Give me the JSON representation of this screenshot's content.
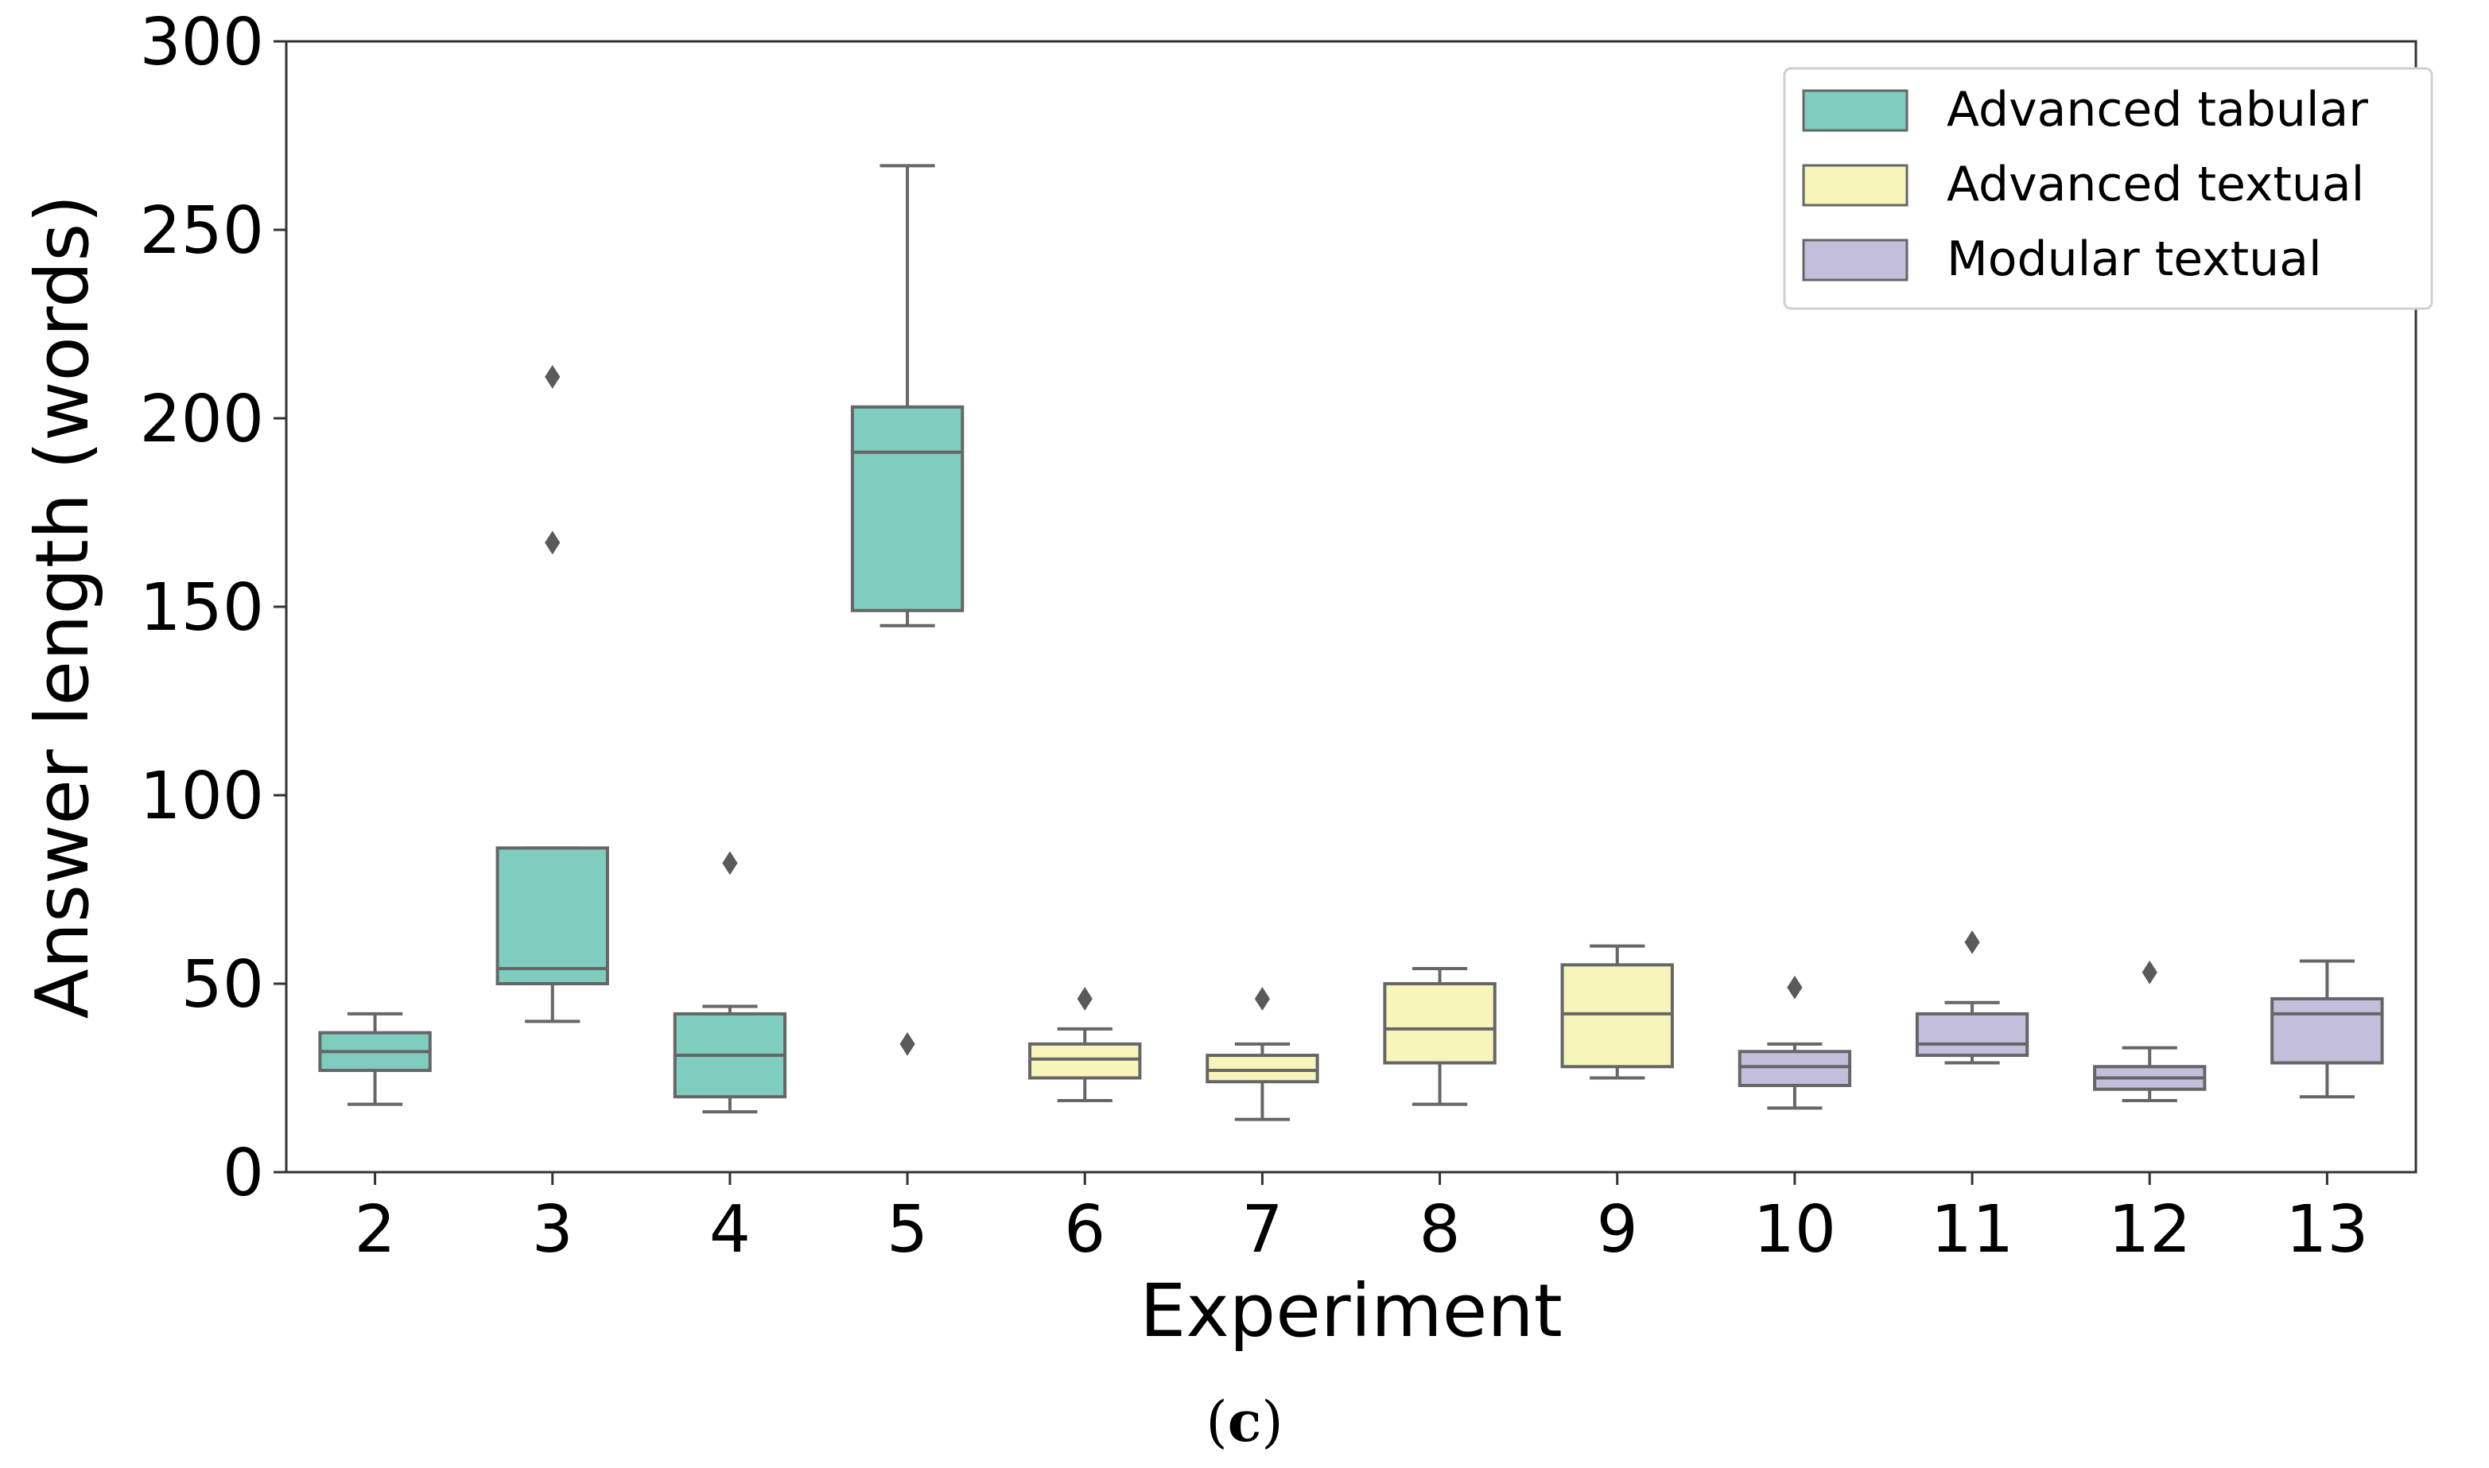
{
  "chart_data": {
    "type": "box",
    "xlabel": "Experiment",
    "ylabel": "Answer length (words)",
    "ylim": [
      0,
      300
    ],
    "yticks": [
      0,
      50,
      100,
      150,
      200,
      250,
      300
    ],
    "categories": [
      "2",
      "3",
      "4",
      "5",
      "6",
      "7",
      "8",
      "9",
      "10",
      "11",
      "12",
      "13"
    ],
    "caption_parts": [
      "(",
      "c",
      ")"
    ],
    "legend_position": "top-right",
    "groups": [
      {
        "name": "Advanced tabular",
        "color": "#7fcdbf"
      },
      {
        "name": "Advanced textual",
        "color": "#f8f5ba"
      },
      {
        "name": "Modular textual",
        "color": "#c3bedb"
      }
    ],
    "boxes": [
      {
        "experiment": "2",
        "group": "Advanced tabular",
        "whisker_low": 18,
        "q1": 27,
        "median": 32,
        "q3": 37,
        "whisker_high": 42,
        "outliers": []
      },
      {
        "experiment": "3",
        "group": "Advanced tabular",
        "whisker_low": 40,
        "q1": 50,
        "median": 54,
        "q3": 86,
        "whisker_high": 86,
        "outliers": [
          167,
          211
        ]
      },
      {
        "experiment": "4",
        "group": "Advanced tabular",
        "whisker_low": 16,
        "q1": 20,
        "median": 31,
        "q3": 42,
        "whisker_high": 44,
        "outliers": [
          82
        ]
      },
      {
        "experiment": "5",
        "group": "Advanced tabular",
        "whisker_low": 145,
        "q1": 149,
        "median": 191,
        "q3": 203,
        "whisker_high": 267,
        "outliers": [
          34
        ]
      },
      {
        "experiment": "6",
        "group": "Advanced textual",
        "whisker_low": 19,
        "q1": 25,
        "median": 30,
        "q3": 34,
        "whisker_high": 38,
        "outliers": [
          46
        ]
      },
      {
        "experiment": "7",
        "group": "Advanced textual",
        "whisker_low": 14,
        "q1": 24,
        "median": 27,
        "q3": 31,
        "whisker_high": 34,
        "outliers": [
          46
        ]
      },
      {
        "experiment": "8",
        "group": "Advanced textual",
        "whisker_low": 18,
        "q1": 29,
        "median": 38,
        "q3": 50,
        "whisker_high": 54,
        "outliers": []
      },
      {
        "experiment": "9",
        "group": "Advanced textual",
        "whisker_low": 25,
        "q1": 28,
        "median": 42,
        "q3": 55,
        "whisker_high": 60,
        "outliers": []
      },
      {
        "experiment": "10",
        "group": "Modular textual",
        "whisker_low": 17,
        "q1": 23,
        "median": 28,
        "q3": 32,
        "whisker_high": 34,
        "outliers": [
          49
        ]
      },
      {
        "experiment": "11",
        "group": "Modular textual",
        "whisker_low": 29,
        "q1": 31,
        "median": 34,
        "q3": 42,
        "whisker_high": 45,
        "outliers": [
          61
        ]
      },
      {
        "experiment": "12",
        "group": "Modular textual",
        "whisker_low": 19,
        "q1": 22,
        "median": 25,
        "q3": 28,
        "whisker_high": 33,
        "outliers": [
          53
        ]
      },
      {
        "experiment": "13",
        "group": "Modular textual",
        "whisker_low": 20,
        "q1": 29,
        "median": 42,
        "q3": 46,
        "whisker_high": 56,
        "outliers": []
      }
    ]
  }
}
